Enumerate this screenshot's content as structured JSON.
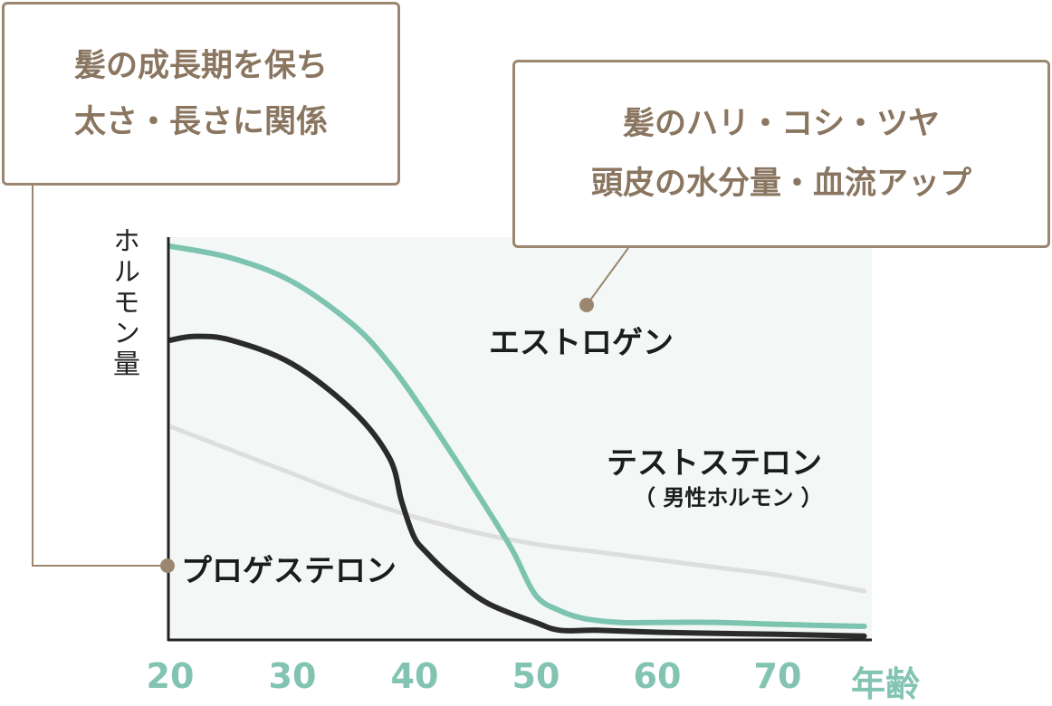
{
  "chart_data": {
    "type": "line",
    "xlabel": "年齢",
    "ylabel": "ホルモン量",
    "xticks": [
      "20",
      "30",
      "40",
      "50",
      "60",
      "70"
    ],
    "xlim": [
      20,
      77
    ],
    "ylim": [
      0,
      100
    ],
    "grid": false,
    "background_color": "#f3f8f6",
    "series": [
      {
        "name": "エストロゲン",
        "color": "#7dc4b0",
        "x": [
          20,
          25,
          30,
          35,
          38,
          41,
          45,
          48,
          50,
          52,
          54,
          57,
          60,
          65,
          70,
          77
        ],
        "y": [
          100,
          97,
          91,
          80,
          70,
          57,
          38,
          23,
          11,
          7,
          5,
          4,
          4,
          4,
          3.5,
          3
        ]
      },
      {
        "name": "プロゲステロン",
        "note": "",
        "color": "#2b2b2b",
        "x": [
          20,
          22,
          25,
          30,
          35,
          38,
          39,
          40,
          41,
          43,
          46,
          50,
          52,
          55,
          60,
          65,
          70,
          77
        ],
        "y": [
          76,
          77,
          76,
          70,
          58,
          46,
          35,
          26,
          22,
          16,
          9,
          4,
          2,
          2,
          1.5,
          1.2,
          1,
          0.5
        ]
      },
      {
        "name": "テストステロン",
        "note": "（ 男性ホルモン ）",
        "color": "#dedede",
        "x": [
          20,
          25,
          30,
          35,
          40,
          45,
          50,
          55,
          60,
          65,
          70,
          77
        ],
        "y": [
          54,
          48,
          42,
          36,
          31,
          27,
          24,
          22,
          20,
          18,
          16,
          12
        ]
      }
    ]
  },
  "callouts": {
    "left": {
      "line1": "髪の成長期を保ち",
      "line2": "太さ・長さに関係"
    },
    "right": {
      "line1": "髪のハリ・コシ・ツヤ",
      "line2": "頭皮の水分量・血流アップ"
    }
  },
  "accent_color": "#9b8770"
}
